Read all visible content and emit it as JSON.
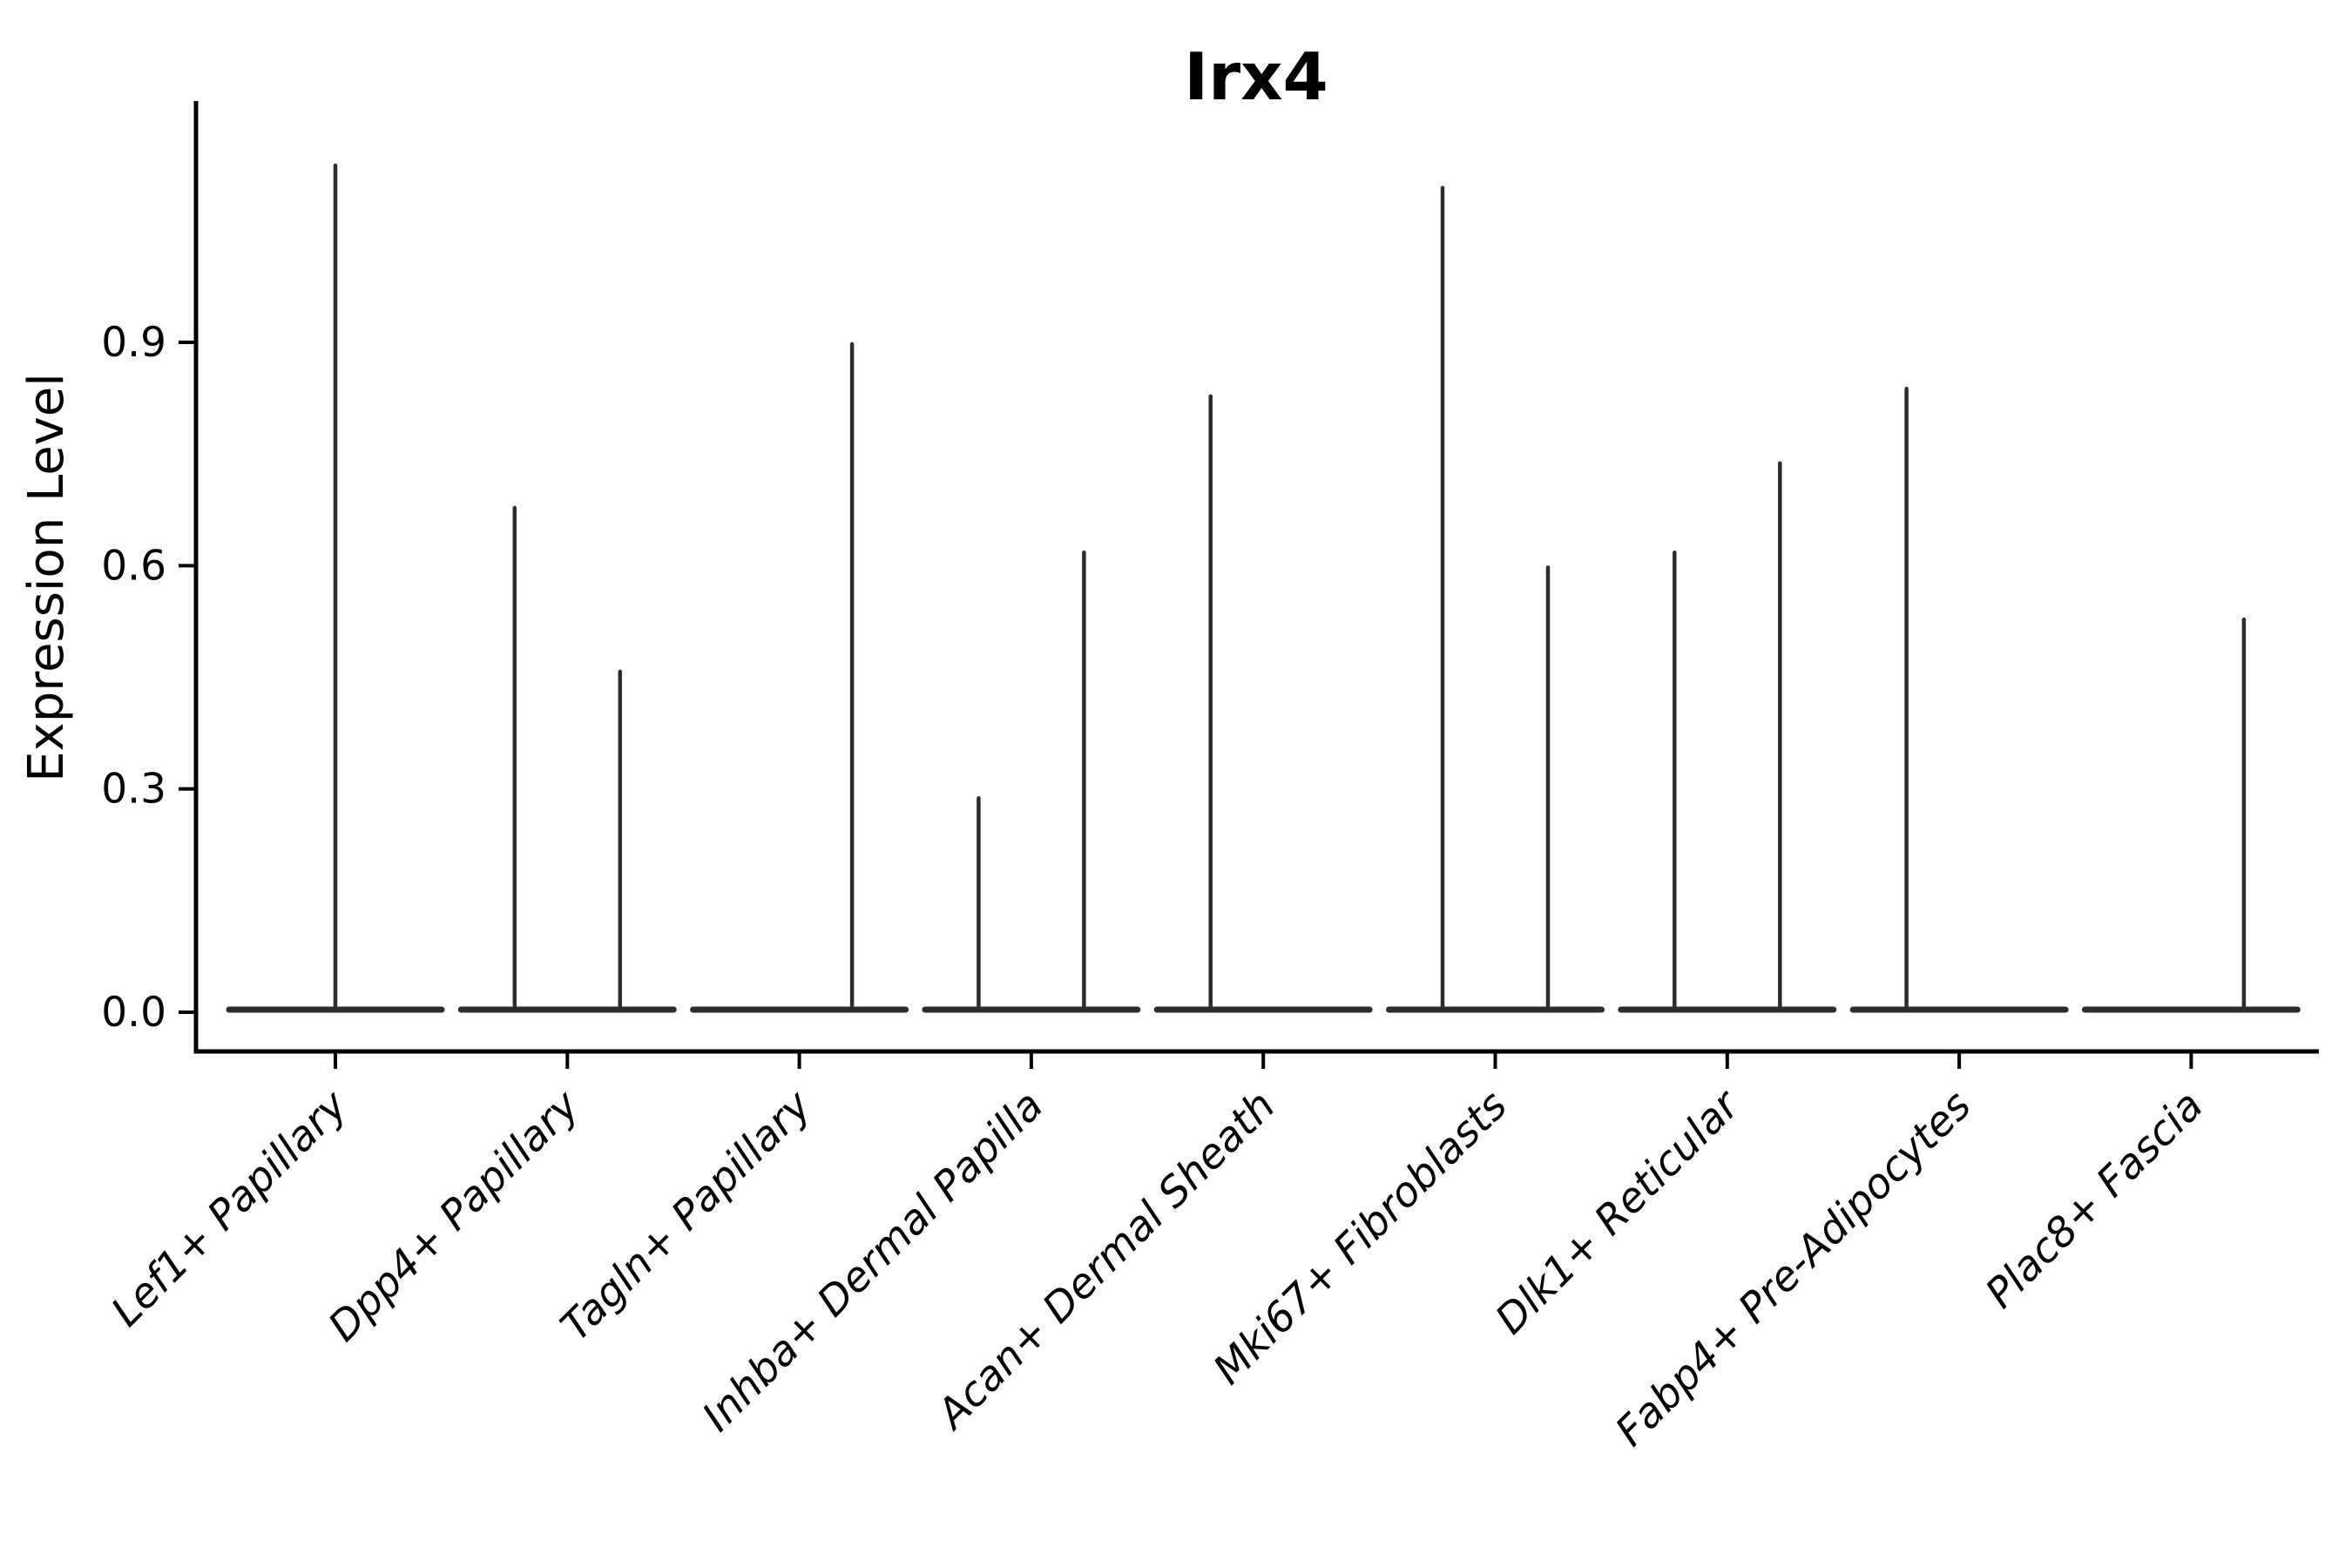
{
  "figure": {
    "title": "Irx4",
    "y_axis_label": "Expression Level",
    "y_tick_labels": [
      "0.0",
      "0.3",
      "0.6",
      "0.9"
    ]
  },
  "chart_data": {
    "type": "violin",
    "title": "Irx4",
    "xlabel": "",
    "ylabel": "Expression Level",
    "yticks": [
      0.0,
      0.3,
      0.6,
      0.9
    ],
    "ylim": [
      0,
      1.22
    ],
    "grid": false,
    "legend_position": "none",
    "violin_color": "#2d2d2d",
    "axis_color": "#000000",
    "baseline_value": 0.0,
    "categories": [
      "Lef1+ Papillary",
      "Dpp4+ Papillary",
      "Tagln+ Papillary",
      "Inhba+ Dermal Papilla",
      "Acan+ Dermal Sheath",
      "Mki67+ Fibroblasts",
      "Dlk1+ Reticular",
      "Fabp4+ Pre-Adipocytes",
      "Plac8+ Fascia"
    ],
    "series": [
      {
        "category": "Lef1+ Papillary",
        "violins": [
          {
            "position": "center",
            "max_expression": 1.14
          }
        ]
      },
      {
        "category": "Dpp4+ Papillary",
        "violins": [
          {
            "position": "left",
            "max_expression": 0.68
          },
          {
            "position": "right",
            "max_expression": 0.46
          }
        ]
      },
      {
        "category": "Tagln+ Papillary",
        "violins": [
          {
            "position": "right",
            "max_expression": 0.9
          }
        ]
      },
      {
        "category": "Inhba+ Dermal Papilla",
        "violins": [
          {
            "position": "left",
            "max_expression": 0.29
          },
          {
            "position": "right",
            "max_expression": 0.62
          }
        ]
      },
      {
        "category": "Acan+ Dermal Sheath",
        "violins": [
          {
            "position": "left",
            "max_expression": 0.83
          }
        ]
      },
      {
        "category": "Mki67+ Fibroblasts",
        "violins": [
          {
            "position": "left",
            "max_expression": 1.11
          },
          {
            "position": "right",
            "max_expression": 0.6
          }
        ]
      },
      {
        "category": "Dlk1+ Reticular",
        "violins": [
          {
            "position": "left",
            "max_expression": 0.62
          },
          {
            "position": "right",
            "max_expression": 0.74
          }
        ]
      },
      {
        "category": "Fabp4+ Pre-Adipocytes",
        "violins": [
          {
            "position": "left",
            "max_expression": 0.84
          }
        ]
      },
      {
        "category": "Plac8+ Fascia",
        "violins": [
          {
            "position": "right",
            "max_expression": 0.53
          }
        ]
      }
    ]
  }
}
